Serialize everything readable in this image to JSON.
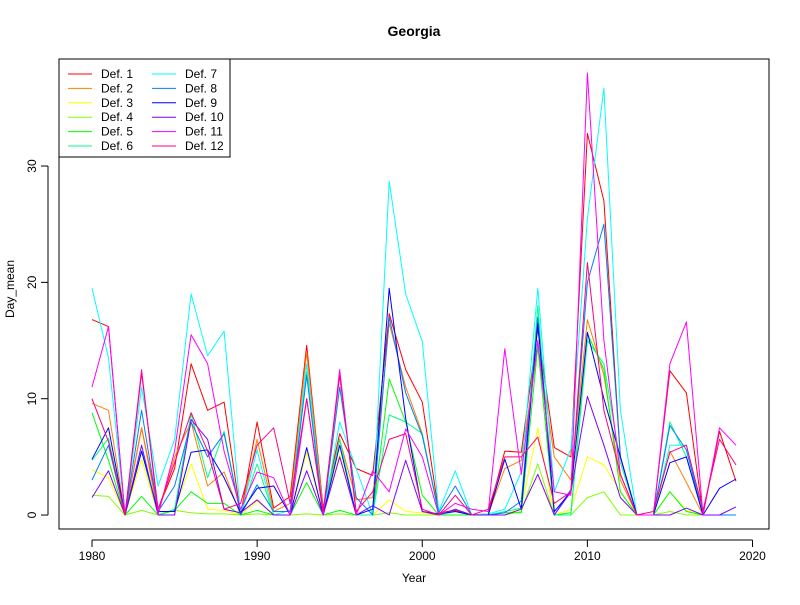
{
  "chart_data": {
    "type": "line",
    "title": "Georgia",
    "xlabel": "Year",
    "ylabel": "Day_mean",
    "xlim": [
      1978,
      2021
    ],
    "ylim": [
      -1.2,
      39.2
    ],
    "xticks": [
      1980,
      1990,
      2000,
      2010,
      2020
    ],
    "yticks": [
      0,
      10,
      20,
      30
    ],
    "legend_position": "top-left",
    "grid": false,
    "x": [
      1980,
      1981,
      1982,
      1983,
      1984,
      1985,
      1986,
      1987,
      1988,
      1989,
      1990,
      1991,
      1992,
      1993,
      1994,
      1995,
      1996,
      1997,
      1998,
      1999,
      2000,
      2001,
      2002,
      2003,
      2004,
      2005,
      2006,
      2007,
      2008,
      2009,
      2010,
      2011,
      2012,
      2013,
      2014,
      2015,
      2016,
      2017,
      2018,
      2019
    ],
    "series": [
      {
        "name": "Def. 1",
        "color": "#FF0000",
        "values": [
          16.8,
          16.2,
          0,
          7.5,
          0.5,
          4,
          13,
          9,
          9.7,
          0,
          8,
          0.6,
          1.6,
          14.6,
          0.6,
          7,
          4,
          3.4,
          17.3,
          12.5,
          9.7,
          0.2,
          0.4,
          0,
          0.1,
          5.5,
          5.4,
          16,
          5.8,
          5,
          32.8,
          27,
          5,
          0,
          0,
          12.4,
          10.5,
          0,
          7.2,
          2.9
        ]
      },
      {
        "name": "Def. 2",
        "color": "#FF8000",
        "values": [
          9.6,
          9,
          0,
          7.5,
          0.1,
          5,
          8,
          2.5,
          3.7,
          0,
          6.5,
          0.3,
          1,
          14,
          0.4,
          6.5,
          1.3,
          1.5,
          16.5,
          11,
          7,
          0.2,
          0.3,
          0,
          0.1,
          4,
          4.7,
          14.5,
          5,
          3,
          16.8,
          12,
          3,
          0,
          0,
          5.5,
          2.8,
          0,
          0,
          0
        ]
      },
      {
        "name": "Def. 3",
        "color": "#FFFF00",
        "values": [
          3.9,
          3.2,
          0,
          4.8,
          0,
          0.5,
          4.4,
          0.5,
          0.4,
          0,
          1.2,
          0,
          0,
          5.4,
          0,
          5.2,
          0,
          0,
          1.3,
          0.3,
          0.2,
          0,
          0,
          0,
          0,
          0,
          0.6,
          7.5,
          0,
          0.5,
          5,
          4.3,
          2,
          0,
          0,
          2,
          0.4,
          0,
          0,
          0
        ]
      },
      {
        "name": "Def. 4",
        "color": "#80FF00",
        "values": [
          1.7,
          1.6,
          0,
          0.4,
          0,
          0.4,
          0.2,
          0.1,
          0.1,
          0,
          0.1,
          0,
          0,
          0.1,
          0,
          0.1,
          0,
          0,
          0.2,
          0,
          0,
          0,
          0,
          0,
          0,
          0,
          0.3,
          4.4,
          0,
          0,
          1.5,
          2,
          0,
          0,
          0,
          0.3,
          0,
          0,
          0,
          0
        ]
      },
      {
        "name": "Def. 5",
        "color": "#00FF00",
        "values": [
          8.8,
          4.7,
          0,
          1.6,
          0,
          0.4,
          2,
          1,
          1,
          0,
          0.4,
          0,
          0,
          2.8,
          0,
          0.4,
          0,
          0,
          11.7,
          8,
          1.7,
          0,
          0,
          0,
          0,
          0.2,
          0.2,
          14.5,
          0,
          0.2,
          15.6,
          12.5,
          2,
          0,
          0,
          2,
          0.3,
          0,
          0,
          0
        ]
      },
      {
        "name": "Def. 6",
        "color": "#00FF80",
        "values": [
          4.7,
          6.6,
          0,
          5.5,
          0,
          0.5,
          8.7,
          3.2,
          7.2,
          0,
          4.4,
          0,
          0,
          12.3,
          0,
          6.5,
          0,
          0,
          8.6,
          8,
          7,
          0,
          0.3,
          0,
          0,
          0.3,
          0.6,
          18,
          0,
          0,
          15,
          13,
          4.5,
          0,
          0,
          8,
          5,
          0,
          0,
          0
        ]
      },
      {
        "name": "Def. 7",
        "color": "#00FFFF",
        "values": [
          19.5,
          13.5,
          0,
          11,
          2.5,
          6.5,
          19,
          13.7,
          15.8,
          0,
          5.6,
          0,
          0.4,
          13,
          0,
          8,
          4,
          0,
          28.7,
          19,
          14.9,
          0.3,
          3.8,
          0,
          0.1,
          0.5,
          3.7,
          19.5,
          2,
          5.7,
          25.5,
          36.7,
          9,
          0,
          0,
          6,
          6,
          0,
          0,
          0
        ]
      },
      {
        "name": "Def. 8",
        "color": "#0080FF",
        "values": [
          3,
          6,
          0,
          9,
          0.3,
          2.5,
          8,
          5,
          7,
          0,
          2.6,
          0.3,
          0.3,
          12,
          0,
          11,
          1.5,
          0,
          17,
          10.5,
          6.8,
          0.2,
          2.5,
          0,
          0,
          0.2,
          1.2,
          17,
          0,
          2.2,
          20,
          25,
          5,
          0,
          0,
          7.7,
          5.6,
          0,
          0,
          0
        ]
      },
      {
        "name": "Def. 9",
        "color": "#0000FF",
        "values": [
          4.8,
          7.5,
          0,
          5.5,
          0.3,
          0.3,
          5.4,
          5.6,
          3.2,
          0.2,
          2.3,
          2.5,
          0,
          5.8,
          0,
          6,
          0,
          0.5,
          19.5,
          8.3,
          0.3,
          0.1,
          0.3,
          0,
          0,
          4.8,
          0.5,
          16.5,
          0.3,
          2,
          15.7,
          10,
          5,
          0,
          0,
          4.5,
          5,
          0,
          2.3,
          3.1
        ]
      },
      {
        "name": "Def. 10",
        "color": "#8000FF",
        "values": [
          1.5,
          3.8,
          0,
          6,
          0,
          0,
          8.2,
          6.5,
          0.5,
          0.2,
          1.3,
          0,
          0,
          3.8,
          0,
          5,
          0,
          0.8,
          0,
          4.7,
          0.3,
          0,
          0.5,
          0,
          0,
          0,
          0.5,
          3.5,
          0,
          2,
          10.2,
          6,
          1.5,
          0,
          0,
          0,
          0.6,
          0,
          0,
          0.7
        ]
      },
      {
        "name": "Def. 11",
        "color": "#FF00FF",
        "values": [
          11,
          16.2,
          0,
          12.5,
          0,
          5.5,
          15.5,
          13,
          5.5,
          0.5,
          3.7,
          3.2,
          0,
          10,
          0,
          12.5,
          0,
          3.8,
          2,
          7.4,
          5,
          0,
          1,
          0.5,
          0.3,
          14.3,
          3.5,
          15,
          2,
          1.7,
          38,
          15,
          3.5,
          0,
          0,
          13,
          16.6,
          0,
          7.5,
          6
        ]
      },
      {
        "name": "Def. 12",
        "color": "#FF0080",
        "values": [
          10,
          6.3,
          0,
          12.2,
          0.5,
          4.5,
          8.8,
          5.5,
          0.5,
          1,
          6,
          7.5,
          1,
          10,
          0.3,
          12,
          0.3,
          2,
          6.5,
          7,
          0.5,
          0,
          1.7,
          0,
          0.5,
          5,
          5,
          6.7,
          1,
          2,
          21.7,
          9,
          3.5,
          0,
          0.3,
          5.4,
          6,
          0.4,
          6.5,
          4.3
        ]
      }
    ]
  }
}
